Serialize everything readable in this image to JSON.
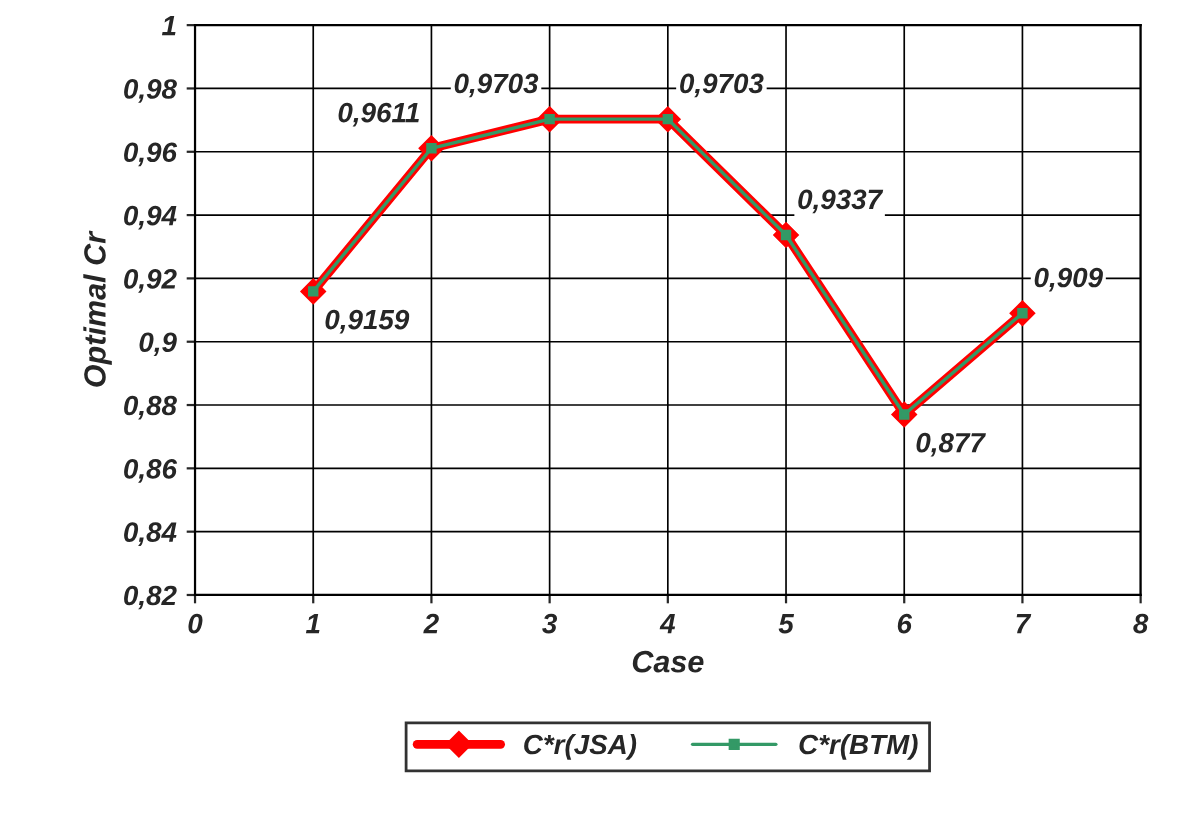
{
  "chart_data": {
    "type": "line",
    "xlabel": "Case",
    "ylabel": "Optimal Cr",
    "x": [
      1,
      2,
      3,
      4,
      5,
      6,
      7
    ],
    "series": [
      {
        "name": "C*r(JSA)",
        "color": "#ff0000",
        "marker": "diamond",
        "values": [
          0.9159,
          0.9611,
          0.9703,
          0.9703,
          0.9337,
          0.877,
          0.909
        ],
        "value_labels": [
          "0,9159",
          "0,9611",
          "0,9703",
          "0,9703",
          "0,9337",
          "0,877",
          "0,909"
        ]
      },
      {
        "name": "C*r(BTM)",
        "color": "#339966",
        "marker": "square",
        "values": [
          0.9159,
          0.9611,
          0.9703,
          0.9703,
          0.9337,
          0.877,
          0.909
        ]
      }
    ],
    "xlim": [
      0,
      8
    ],
    "xticks": [
      0,
      1,
      2,
      3,
      4,
      5,
      6,
      7,
      8
    ],
    "ylim": [
      0.82,
      1
    ],
    "yticks": [
      {
        "value": 0.82,
        "label": "0,82"
      },
      {
        "value": 0.84,
        "label": "0,84"
      },
      {
        "value": 0.86,
        "label": "0,86"
      },
      {
        "value": 0.88,
        "label": "0,88"
      },
      {
        "value": 0.9,
        "label": "0,9"
      },
      {
        "value": 0.92,
        "label": "0,92"
      },
      {
        "value": 0.94,
        "label": "0,94"
      },
      {
        "value": 0.96,
        "label": "0,96"
      },
      {
        "value": 0.98,
        "label": "0,98"
      },
      {
        "value": 1,
        "label": "1"
      }
    ],
    "grid": true,
    "legend": "bottom",
    "line_style": "solid"
  }
}
